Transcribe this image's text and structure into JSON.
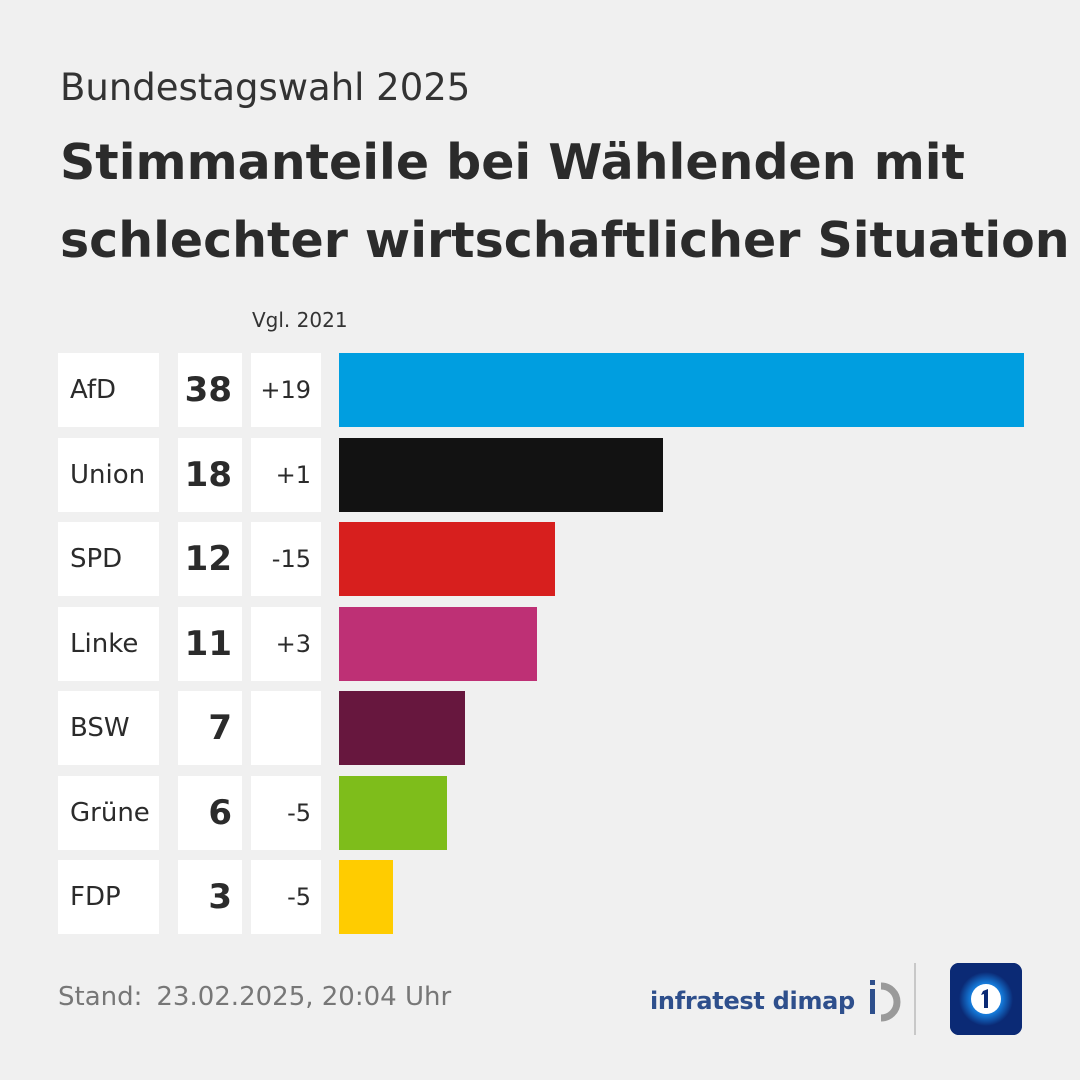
{
  "header": {
    "subtitle": "Bundestagswahl 2025",
    "title_line1": "Stimmanteile bei Wählenden mit",
    "title_line2": "schlechter wirtschaftlicher Situation"
  },
  "chart_data": {
    "type": "bar",
    "orientation": "horizontal",
    "title": "Stimmanteile bei Wählenden mit schlechter wirtschaftlicher Situation",
    "subtitle": "Bundestagswahl 2025",
    "change_column_label": "Vgl. 2021",
    "xlim": [
      0,
      38
    ],
    "grid": false,
    "categories": [
      "AfD",
      "Union",
      "SPD",
      "Linke",
      "BSW",
      "Grüne",
      "FDP"
    ],
    "values": [
      38,
      18,
      12,
      11,
      7,
      6,
      3
    ],
    "value_labels": [
      "38",
      "18",
      "12",
      "11",
      "7",
      "6",
      "3"
    ],
    "changes": [
      "+19",
      "+1",
      "-15",
      "+3",
      "",
      "-5",
      "-5"
    ],
    "colors": [
      "#009ee0",
      "#121212",
      "#d71f1e",
      "#be3075",
      "#67173e",
      "#7ebd1b",
      "#ffcc00"
    ]
  },
  "footer": {
    "stand_label": "Stand:",
    "stand_value": "23.02.2025, 20:04 Uhr",
    "source_logo_text": "infratest dimap",
    "broadcaster_logo": "tagesschau-icon"
  }
}
